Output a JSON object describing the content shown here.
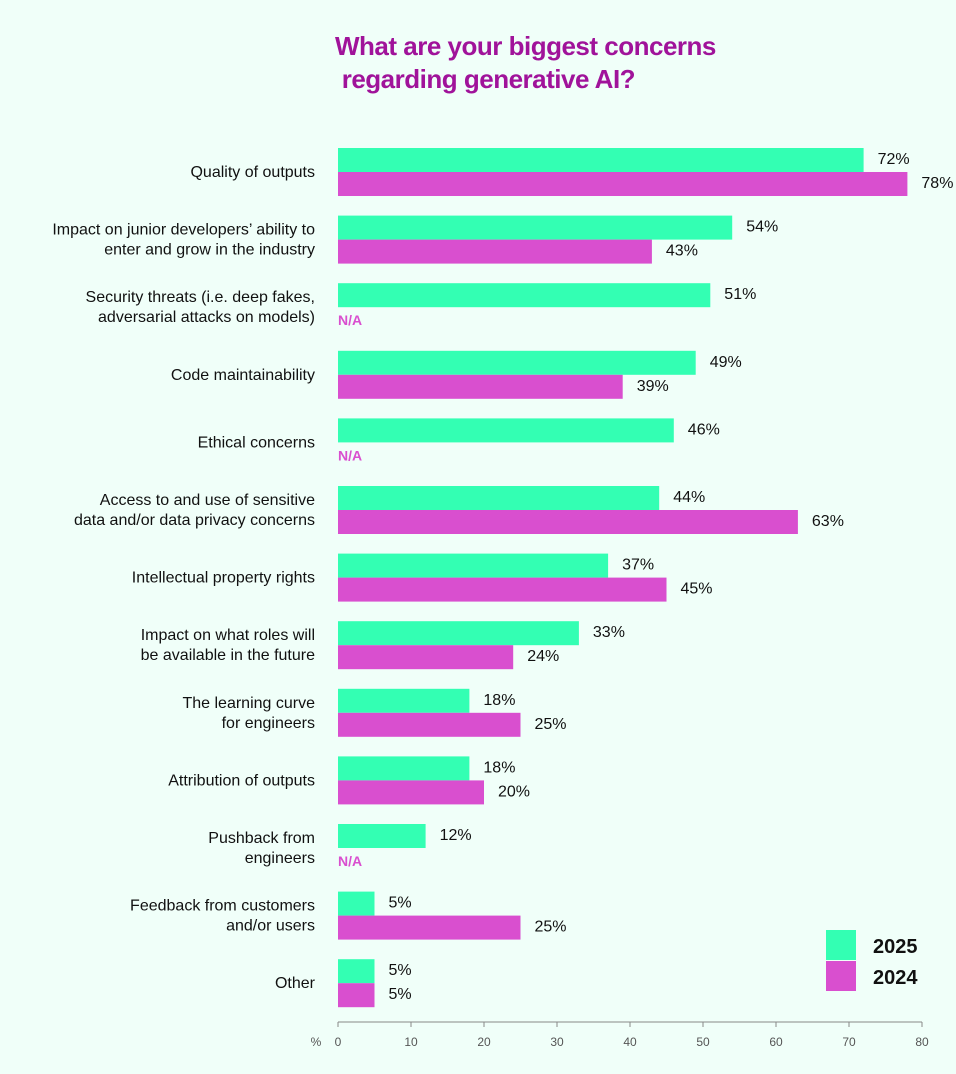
{
  "title": "What are your biggest concerns\n regarding generative AI?",
  "colors": {
    "s2025": "#33ffb3",
    "s2024": "#d94fcf",
    "title": "#a0139a",
    "na": "#d94fcf"
  },
  "chart_data": {
    "type": "bar",
    "orientation": "horizontal",
    "title": "What are your biggest concerns\n regarding generative AI?",
    "x_unit": "%",
    "xlim": [
      0,
      80
    ],
    "x_ticks": [
      "0",
      "10",
      "20",
      "30",
      "40",
      "50",
      "60",
      "70",
      "80"
    ],
    "legend_position": "bottom-right",
    "categories": [
      "Quality of outputs",
      "Impact on junior developers’ ability to\nenter and grow in the industry",
      "Security threats (i.e. deep fakes,\nadversarial attacks on models)",
      "Code maintainability",
      "Ethical concerns",
      "Access to and use of sensitive\ndata and/or data privacy concerns",
      "Intellectual property rights",
      "Impact on what roles will\nbe available in the future",
      "The learning curve\nfor engineers",
      "Attribution of outputs",
      "Pushback from\nengineers",
      "Feedback from customers\nand/or users",
      "Other"
    ],
    "series": [
      {
        "name": "2025",
        "values": [
          72,
          54,
          51,
          49,
          46,
          44,
          37,
          33,
          18,
          18,
          12,
          5,
          5
        ],
        "labels": [
          "72%",
          "54%",
          "51%",
          "49%",
          "46%",
          "44%",
          "37%",
          "33%",
          "18%",
          "18%",
          "12%",
          "5%",
          "5%"
        ]
      },
      {
        "name": "2024",
        "values": [
          78,
          43,
          null,
          39,
          null,
          63,
          45,
          24,
          25,
          20,
          null,
          25,
          5
        ],
        "labels": [
          "78%",
          "43%",
          "N/A",
          "39%",
          "N/A",
          "63%",
          "45%",
          "24%",
          "25%",
          "20%",
          "N/A",
          "25%",
          "5%"
        ]
      }
    ]
  }
}
